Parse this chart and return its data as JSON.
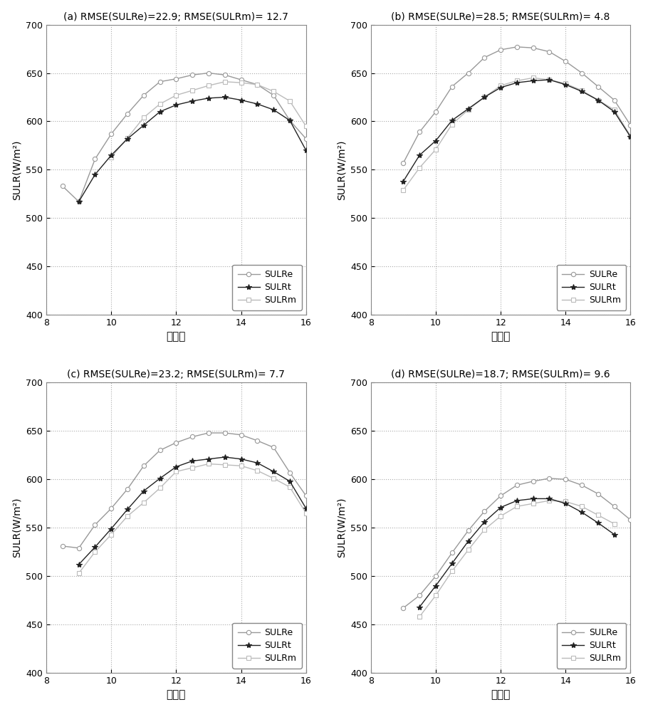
{
  "subplots": [
    {
      "title": "(a) RMSE(SULRe)=22.9; RMSE(SULRm)= 12.7",
      "SULRe_x": [
        8.5,
        9.0,
        9.5,
        10.0,
        10.5,
        11.0,
        11.5,
        12.0,
        12.5,
        13.0,
        13.5,
        14.0,
        14.5,
        15.0,
        15.5,
        16.0
      ],
      "SULRe_y": [
        533,
        517,
        561,
        587,
        608,
        627,
        641,
        644,
        648,
        650,
        648,
        643,
        638,
        627,
        601,
        582
      ],
      "SULRt_x": [
        9.0,
        9.5,
        10.0,
        10.5,
        11.0,
        11.5,
        12.0,
        12.5,
        13.0,
        13.5,
        14.0,
        14.5,
        15.0,
        15.5,
        16.0
      ],
      "SULRt_y": [
        517,
        545,
        565,
        582,
        596,
        610,
        617,
        621,
        624,
        625,
        622,
        618,
        612,
        601,
        570
      ],
      "SULRm_x": [
        10.0,
        10.5,
        11.0,
        11.5,
        12.0,
        12.5,
        13.0,
        13.5,
        14.0,
        14.5,
        15.0,
        15.5,
        16.0
      ],
      "SULRm_y": [
        563,
        583,
        604,
        618,
        627,
        632,
        637,
        641,
        640,
        638,
        631,
        621,
        595
      ]
    },
    {
      "title": "(b) RMSE(SULRe)=28.5; RMSE(SULRm)= 4.8",
      "SULRe_x": [
        9.0,
        9.5,
        10.0,
        10.5,
        11.0,
        11.5,
        12.0,
        12.5,
        13.0,
        13.5,
        14.0,
        14.5,
        15.0,
        15.5,
        16.0
      ],
      "SULRe_y": [
        557,
        589,
        610,
        636,
        650,
        666,
        674,
        677,
        676,
        672,
        662,
        650,
        636,
        622,
        596
      ],
      "SULRt_x": [
        9.0,
        9.5,
        10.0,
        10.5,
        11.0,
        11.5,
        12.0,
        12.5,
        13.0,
        13.5,
        14.0,
        14.5,
        15.0,
        15.5,
        16.0
      ],
      "SULRt_y": [
        538,
        565,
        580,
        601,
        613,
        625,
        635,
        640,
        642,
        643,
        638,
        631,
        622,
        610,
        584
      ],
      "SULRm_x": [
        9.0,
        9.5,
        10.0,
        10.5,
        11.0,
        11.5,
        12.0,
        12.5,
        13.0,
        13.5,
        14.0,
        14.5,
        15.0,
        15.5,
        16.0
      ],
      "SULRm_y": [
        529,
        552,
        571,
        597,
        612,
        625,
        637,
        642,
        645,
        643,
        639,
        632,
        622,
        612,
        585
      ]
    },
    {
      "title": "(c) RMSE(SULRe)=23.2; RMSE(SULRm)= 7.7",
      "SULRe_x": [
        8.5,
        9.0,
        9.5,
        10.0,
        10.5,
        11.0,
        11.5,
        12.0,
        12.5,
        13.0,
        13.5,
        14.0,
        14.5,
        15.0,
        15.5,
        16.0
      ],
      "SULRe_y": [
        531,
        529,
        553,
        570,
        590,
        614,
        630,
        638,
        644,
        648,
        648,
        646,
        640,
        633,
        607,
        583
      ],
      "SULRt_x": [
        9.0,
        9.5,
        10.0,
        10.5,
        11.0,
        11.5,
        12.0,
        12.5,
        13.0,
        13.5,
        14.0,
        14.5,
        15.0,
        15.5,
        16.0
      ],
      "SULRt_y": [
        512,
        530,
        549,
        569,
        588,
        601,
        613,
        619,
        621,
        623,
        621,
        617,
        608,
        598,
        570
      ],
      "SULRm_x": [
        9.0,
        9.5,
        10.0,
        10.5,
        11.0,
        11.5,
        12.0,
        12.5,
        13.0,
        13.5,
        14.0,
        14.5,
        15.0,
        15.5,
        16.0
      ],
      "SULRm_y": [
        503,
        525,
        543,
        562,
        576,
        591,
        608,
        612,
        616,
        615,
        614,
        609,
        601,
        592,
        565
      ]
    },
    {
      "title": "(d) RMSE(SULRe)=18.7; RMSE(SULRm)= 9.6",
      "SULRe_x": [
        9.0,
        9.5,
        10.0,
        10.5,
        11.0,
        11.5,
        12.0,
        12.5,
        13.0,
        13.5,
        14.0,
        14.5,
        15.0,
        15.5,
        16.0
      ],
      "SULRe_y": [
        467,
        480,
        500,
        524,
        547,
        567,
        583,
        594,
        598,
        601,
        600,
        594,
        585,
        572,
        558
      ],
      "SULRt_x": [
        9.5,
        10.0,
        10.5,
        11.0,
        11.5,
        12.0,
        12.5,
        13.0,
        13.5,
        14.0,
        14.5,
        15.0,
        15.5
      ],
      "SULRt_y": [
        468,
        490,
        513,
        536,
        556,
        571,
        578,
        580,
        580,
        575,
        566,
        555,
        543
      ],
      "SULRm_x": [
        9.5,
        10.0,
        10.5,
        11.0,
        11.5,
        12.0,
        12.5,
        13.0,
        13.5,
        14.0,
        14.5,
        15.0,
        15.5
      ],
      "SULRm_y": [
        458,
        480,
        505,
        527,
        548,
        562,
        572,
        575,
        578,
        577,
        572,
        563,
        554
      ]
    }
  ],
  "x_ticks": [
    8,
    10,
    12,
    14,
    16
  ],
  "ylim": [
    400,
    700
  ],
  "yticks": [
    400,
    450,
    500,
    550,
    600,
    650,
    700
  ],
  "xlim": [
    8,
    16
  ],
  "xlabel": "本地时",
  "ylabel": "SULR(W/m²)",
  "color_e": "#999999",
  "color_t": "#222222",
  "color_m": "#bbbbbb",
  "bg_color": "#ffffff",
  "grid_color": "#aaaaaa",
  "legend_loc": "lower right"
}
